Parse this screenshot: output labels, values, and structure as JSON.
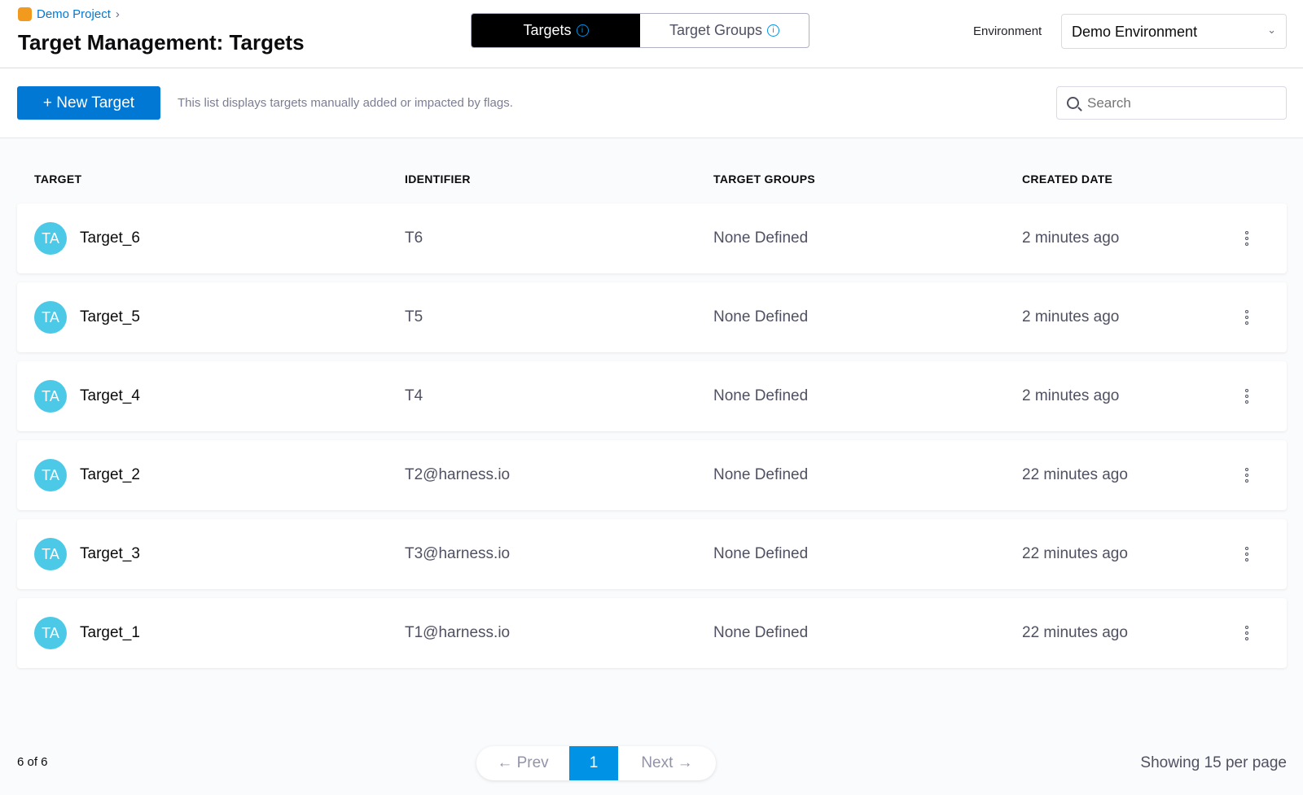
{
  "header": {
    "breadcrumb": "Demo Project",
    "breadcrumb_sep": "›",
    "title": "Target Management: Targets",
    "tabs": [
      {
        "label": "Targets",
        "active": true
      },
      {
        "label": "Target Groups",
        "active": false
      }
    ],
    "info_glyph": "i",
    "env_label": "Environment",
    "env_value": "Demo Environment",
    "chev": "⌄"
  },
  "toolbar": {
    "new_label": "+ New Target",
    "description": "This list displays targets manually added or impacted by flags.",
    "search_placeholder": "Search"
  },
  "table": {
    "columns": [
      "TARGET",
      "IDENTIFIER",
      "TARGET GROUPS",
      "CREATED DATE"
    ],
    "rows": [
      {
        "avatar": "TA",
        "name": "Target_6",
        "id": "T6",
        "groups": "None Defined",
        "date": "2 minutes ago"
      },
      {
        "avatar": "TA",
        "name": "Target_5",
        "id": "T5",
        "groups": "None Defined",
        "date": "2 minutes ago"
      },
      {
        "avatar": "TA",
        "name": "Target_4",
        "id": "T4",
        "groups": "None Defined",
        "date": "2 minutes ago"
      },
      {
        "avatar": "TA",
        "name": "Target_2",
        "id": "T2@harness.io",
        "groups": "None Defined",
        "date": "22 minutes ago"
      },
      {
        "avatar": "TA",
        "name": "Target_3",
        "id": "T3@harness.io",
        "groups": "None Defined",
        "date": "22 minutes ago"
      },
      {
        "avatar": "TA",
        "name": "Target_1",
        "id": "T1@harness.io",
        "groups": "None Defined",
        "date": "22 minutes ago"
      }
    ]
  },
  "footer": {
    "count": "6 of 6",
    "prev": "← Prev",
    "page": "1",
    "next": "Next →",
    "per_page": "Showing 15 per page"
  },
  "colors": {
    "accent": "#0278d5",
    "avatar": "#4dc9e8",
    "page_active": "#0092e4"
  }
}
